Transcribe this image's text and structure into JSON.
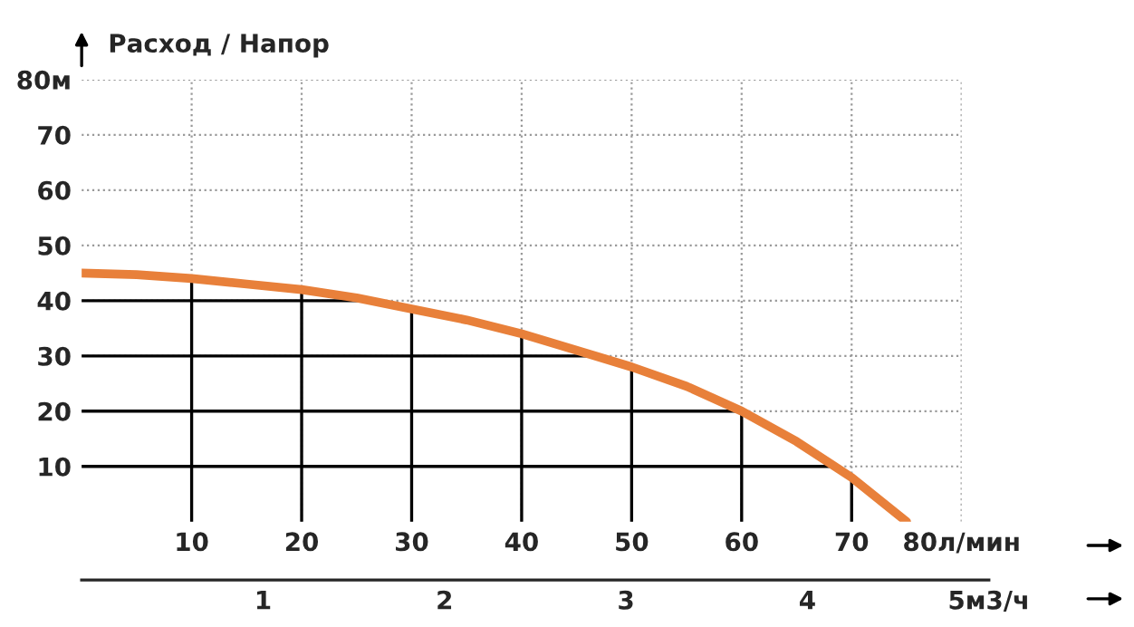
{
  "chart_data": {
    "type": "line",
    "title": "Расход / Напор",
    "x": [
      0,
      5,
      10,
      15,
      20,
      25,
      30,
      35,
      40,
      45,
      50,
      55,
      60,
      65,
      70,
      75
    ],
    "series": [
      {
        "color": "#e8803a",
        "values": [
          45,
          44.7,
          44,
          43,
          42,
          40.5,
          38.5,
          36.5,
          34,
          31,
          28,
          24.5,
          20,
          14.5,
          8,
          0
        ]
      }
    ],
    "xlim": [
      0,
      80
    ],
    "xticks": [
      10,
      20,
      30,
      40,
      50,
      60,
      70,
      {
        "value": 80,
        "label": "80л/мин"
      }
    ],
    "ylim": [
      0,
      80
    ],
    "yticks": [
      10,
      20,
      30,
      40,
      50,
      60,
      70,
      {
        "value": 80,
        "label": "80м"
      }
    ],
    "x2lim": [
      0,
      5
    ],
    "x2ticks": [
      1,
      2,
      3,
      4,
      {
        "value": 5,
        "label": "5м3/ч"
      }
    ],
    "grid": true,
    "marker": "none",
    "line_style": "solid"
  }
}
